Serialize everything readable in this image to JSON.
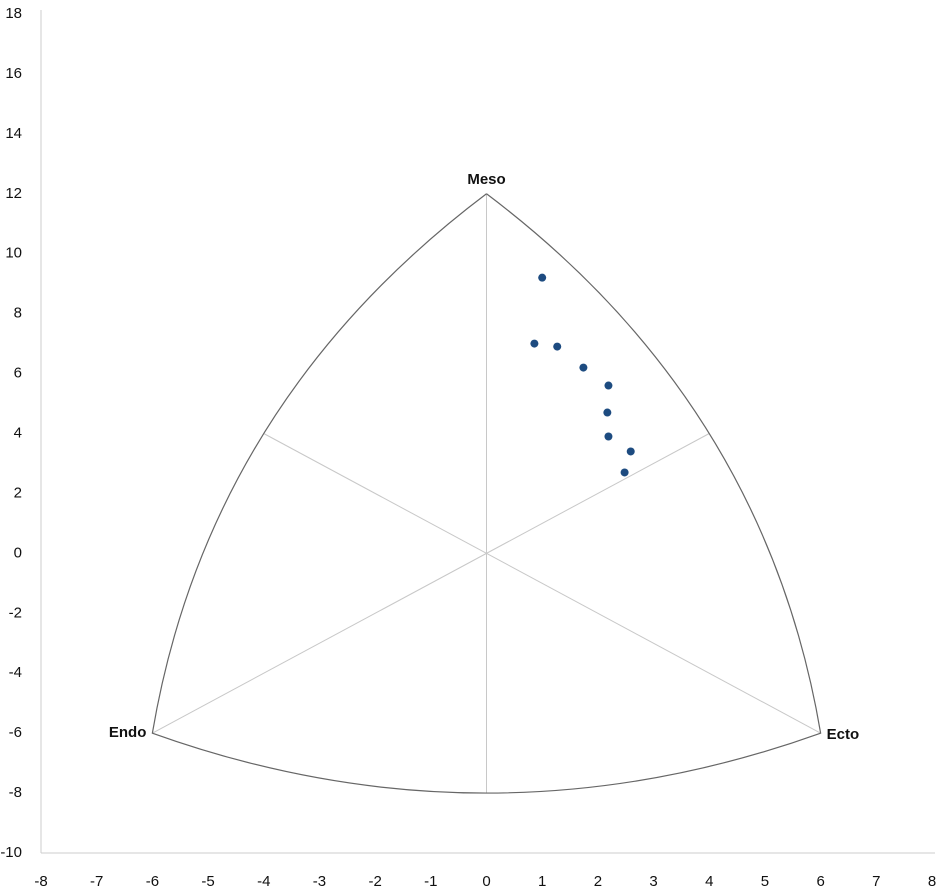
{
  "chart_data": {
    "type": "scatter",
    "x": [
      1.0,
      0.86,
      1.27,
      1.74,
      2.19,
      2.17,
      2.19,
      2.59,
      2.48
    ],
    "values": [
      9.2,
      7.0,
      6.9,
      6.2,
      5.6,
      4.7,
      3.9,
      3.4,
      2.7
    ],
    "color": "#1d4b80",
    "xlim": [
      -8,
      8
    ],
    "xticks": [
      -8,
      -7,
      -6,
      -5,
      -4,
      -3,
      -2,
      -1,
      0,
      1,
      2,
      3,
      4,
      5,
      6,
      7,
      8
    ],
    "ylim": [
      -10,
      18
    ],
    "yticks": [
      -10,
      -8,
      -6,
      -4,
      -2,
      0,
      2,
      4,
      6,
      8,
      10,
      12,
      14,
      16,
      18
    ],
    "annotations": [
      {
        "text": "Meso",
        "x": 0,
        "y": 12
      },
      {
        "text": "Endo",
        "x": -6,
        "y": -6
      },
      {
        "text": "Ecto",
        "x": 6,
        "y": -6
      }
    ]
  }
}
